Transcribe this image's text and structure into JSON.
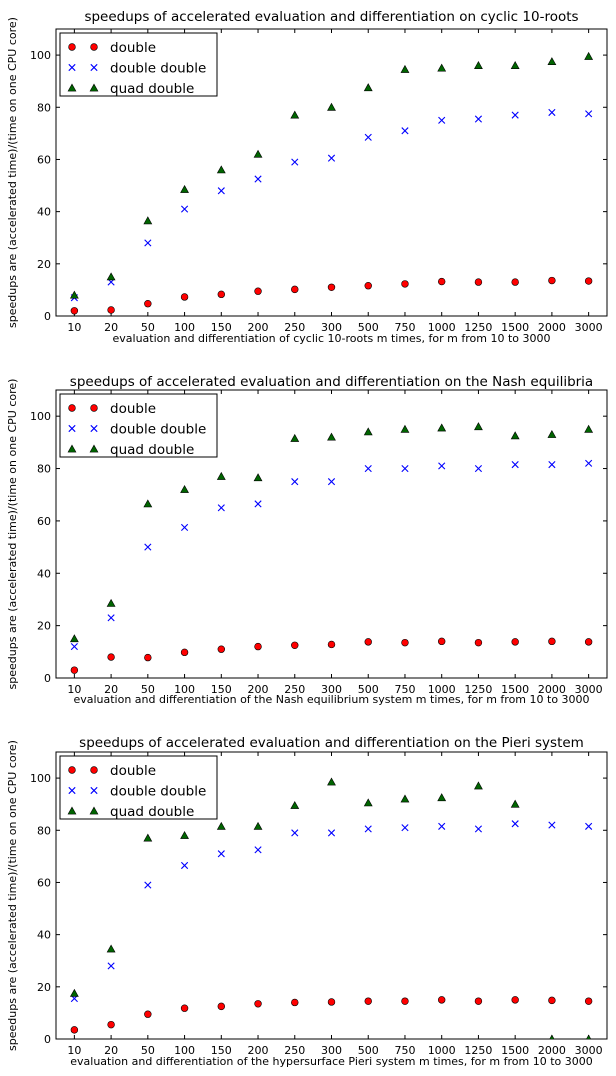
{
  "colors": {
    "double": "#ff0000",
    "double double": "#0000ff",
    "quad double": "#006400"
  },
  "chart_data": [
    {
      "type": "scatter",
      "title": "speedups of accelerated evaluation and differentiation on cyclic 10-roots",
      "xlabel": "evaluation and differentiation of cyclic 10-roots m times, for m from 10 to 3000",
      "ylabel": "speedups are (accelerated time)/(time on one CPU core)",
      "categories": [
        "10",
        "20",
        "50",
        "100",
        "150",
        "200",
        "250",
        "300",
        "500",
        "750",
        "1000",
        "1250",
        "1500",
        "2000",
        "3000"
      ],
      "ylim": [
        0,
        110
      ],
      "yticks": [
        0,
        20,
        40,
        60,
        80,
        100
      ],
      "legend": "top-left",
      "series": [
        {
          "name": "double",
          "marker": "circle",
          "values": [
            2,
            2.3,
            4.7,
            7.3,
            8.3,
            9.5,
            10.2,
            11,
            11.6,
            12.3,
            13.2,
            13,
            13,
            13.6,
            13.4
          ]
        },
        {
          "name": "double double",
          "marker": "x",
          "values": [
            7,
            13,
            28,
            41,
            48,
            52.5,
            59,
            60.5,
            68.5,
            71,
            75,
            75.5,
            77,
            78,
            77.5
          ]
        },
        {
          "name": "quad double",
          "marker": "triangle",
          "values": [
            8,
            15,
            36.5,
            48.5,
            56,
            62,
            77,
            80,
            87.5,
            94.5,
            95,
            96,
            96,
            97.5,
            99.5
          ]
        }
      ]
    },
    {
      "type": "scatter",
      "title": "speedups of accelerated evaluation and differentiation on the Nash equilibria",
      "xlabel": "evaluation and differentiation of the Nash equilibrium system m times, for m from 10 to 3000",
      "ylabel": "speedups are (accelerated time)/(time on one CPU core)",
      "categories": [
        "10",
        "20",
        "50",
        "100",
        "150",
        "200",
        "250",
        "300",
        "500",
        "750",
        "1000",
        "1250",
        "1500",
        "2000",
        "3000"
      ],
      "ylim": [
        0,
        110
      ],
      "yticks": [
        0,
        20,
        40,
        60,
        80,
        100
      ],
      "legend": "top-left",
      "series": [
        {
          "name": "double",
          "marker": "circle",
          "values": [
            3,
            8,
            7.8,
            9.8,
            11,
            12,
            12.5,
            12.8,
            13.8,
            13.5,
            14,
            13.5,
            13.8,
            14,
            13.8
          ]
        },
        {
          "name": "double double",
          "marker": "x",
          "values": [
            12,
            23,
            50,
            57.5,
            65,
            66.5,
            75,
            75,
            80,
            80,
            81,
            80,
            81.5,
            81.5,
            82
          ]
        },
        {
          "name": "quad double",
          "marker": "triangle",
          "values": [
            15,
            28.5,
            66.5,
            72,
            77,
            76.5,
            91.5,
            92,
            94,
            95,
            95.5,
            96,
            92.5,
            93,
            95
          ]
        }
      ]
    },
    {
      "type": "scatter",
      "title": "speedups of accelerated evaluation and differentiation on the Pieri system",
      "xlabel": "evaluation and differentiation of the hypersurface Pieri system m times, for m from 10 to 3000",
      "ylabel": "speedups are (accelerated time)/(time on one CPU core)",
      "categories": [
        "10",
        "20",
        "50",
        "100",
        "150",
        "200",
        "250",
        "300",
        "500",
        "750",
        "1000",
        "1250",
        "1500",
        "2000",
        "3000"
      ],
      "ylim": [
        0,
        110
      ],
      "yticks": [
        0,
        20,
        40,
        60,
        80,
        100
      ],
      "legend": "top-left",
      "series": [
        {
          "name": "double",
          "marker": "circle",
          "values": [
            3.5,
            5.5,
            9.5,
            11.8,
            12.5,
            13.5,
            14,
            14.2,
            14.5,
            14.5,
            15,
            14.5,
            15,
            14.8,
            14.5
          ]
        },
        {
          "name": "double double",
          "marker": "x",
          "values": [
            15.5,
            28,
            59,
            66.5,
            71,
            72.5,
            79,
            79,
            80.5,
            81,
            81.5,
            80.5,
            82.5,
            82,
            81.5
          ]
        },
        {
          "name": "quad double",
          "marker": "triangle",
          "values": [
            17.5,
            34.5,
            77,
            78,
            81.5,
            81.5,
            89.5,
            98.5,
            90.5,
            92,
            92.5,
            97,
            90,
            0,
            0
          ]
        }
      ]
    }
  ]
}
